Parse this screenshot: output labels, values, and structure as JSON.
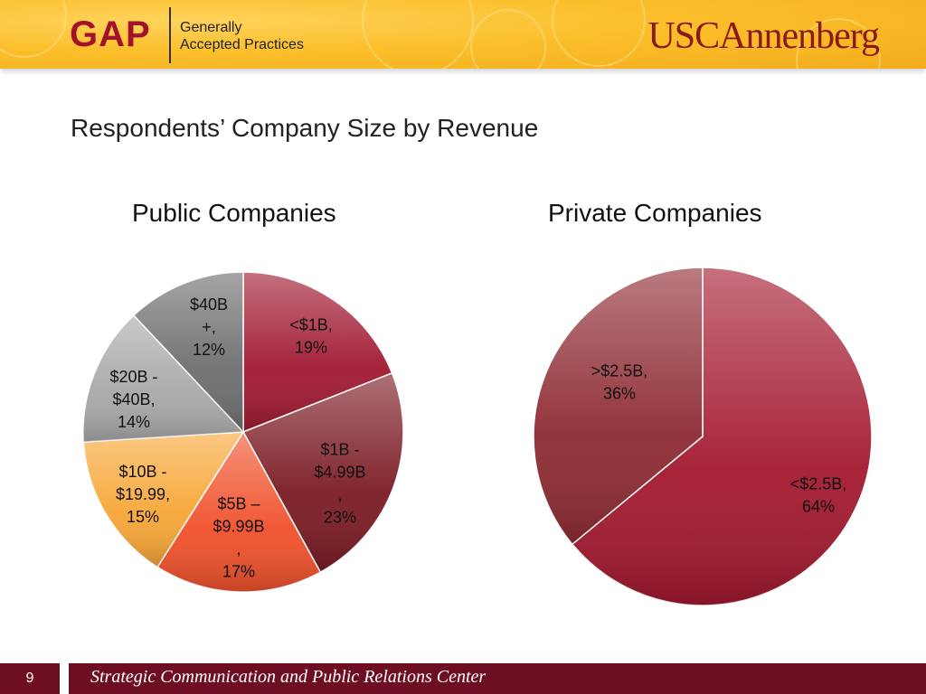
{
  "header": {
    "gap_logo": "GAP",
    "gap_line1": "Generally",
    "gap_line2": "Accepted Practices",
    "usc_logo": "USCAnnenberg"
  },
  "slide_title": "Respondents’ Company Size by Revenue",
  "chart_data": [
    {
      "type": "pie",
      "title": "Public Companies",
      "slices": [
        {
          "label_lines": [
            "<$1B,",
            "19%"
          ],
          "value": 19,
          "color": "#a01830"
        },
        {
          "label_lines": [
            "$1B -",
            "$4.99B",
            ",",
            "23%"
          ],
          "value": 23,
          "color": "#7a1a22"
        },
        {
          "label_lines": [
            "$5B –",
            "$9.99B",
            ",",
            "17%"
          ],
          "value": 17,
          "color": "#f0502a"
        },
        {
          "label_lines": [
            "$10B -",
            "$19.99,",
            "15%"
          ],
          "value": 15,
          "color": "#f7a636"
        },
        {
          "label_lines": [
            "$20B -",
            "$40B,",
            "14%"
          ],
          "value": 14,
          "color": "#a8a8a8"
        },
        {
          "label_lines": [
            "$40B",
            "+,",
            "12%"
          ],
          "value": 12,
          "color": "#6e6e6e"
        }
      ]
    },
    {
      "type": "pie",
      "title": "Private Companies",
      "slices": [
        {
          "label_lines": [
            "<$2.5B,",
            "64%"
          ],
          "value": 64,
          "color": "#a3182e"
        },
        {
          "label_lines": [
            ">$2.5B,",
            "36%"
          ],
          "value": 36,
          "color": "#8e2a32"
        }
      ]
    }
  ],
  "footer": {
    "page_number": "9",
    "text": "Strategic Communication and Public Relations Center"
  }
}
